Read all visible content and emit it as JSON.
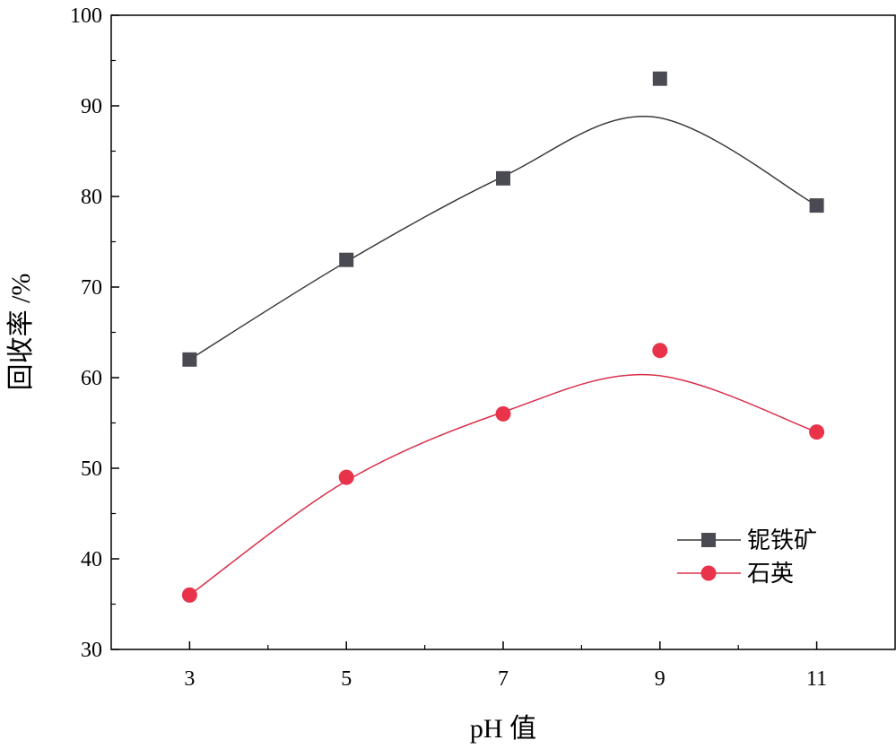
{
  "chart_data": {
    "type": "line",
    "title": "",
    "xlabel": "pH 值",
    "ylabel": "回收率 /%",
    "x": [
      3,
      5,
      7,
      9,
      11
    ],
    "xlim": [
      2,
      12
    ],
    "ylim": [
      30,
      100
    ],
    "xticks": [
      3,
      5,
      7,
      9,
      11
    ],
    "yticks": [
      30,
      40,
      50,
      60,
      70,
      80,
      90,
      100
    ],
    "grid": false,
    "legend_position": "bottom-right",
    "series": [
      {
        "name": "铌铁矿",
        "values": [
          62,
          73,
          82,
          93,
          79
        ],
        "marker": "square",
        "marker_color": "#4a4a52",
        "line_color": "#3a3a3a",
        "fit_curve": [
          [
            3,
            62
          ],
          [
            5,
            72.8
          ],
          [
            7,
            82.2
          ],
          [
            8.9,
            88.8
          ],
          [
            11,
            79
          ]
        ]
      },
      {
        "name": "石英",
        "values": [
          36,
          49,
          56,
          63,
          54
        ],
        "marker": "circle",
        "marker_color": "#e8334a",
        "line_color": "#d9304a",
        "fit_curve": [
          [
            3,
            36
          ],
          [
            5,
            48.6
          ],
          [
            7,
            56.2
          ],
          [
            8.9,
            60.3
          ],
          [
            11,
            54
          ]
        ]
      }
    ]
  }
}
